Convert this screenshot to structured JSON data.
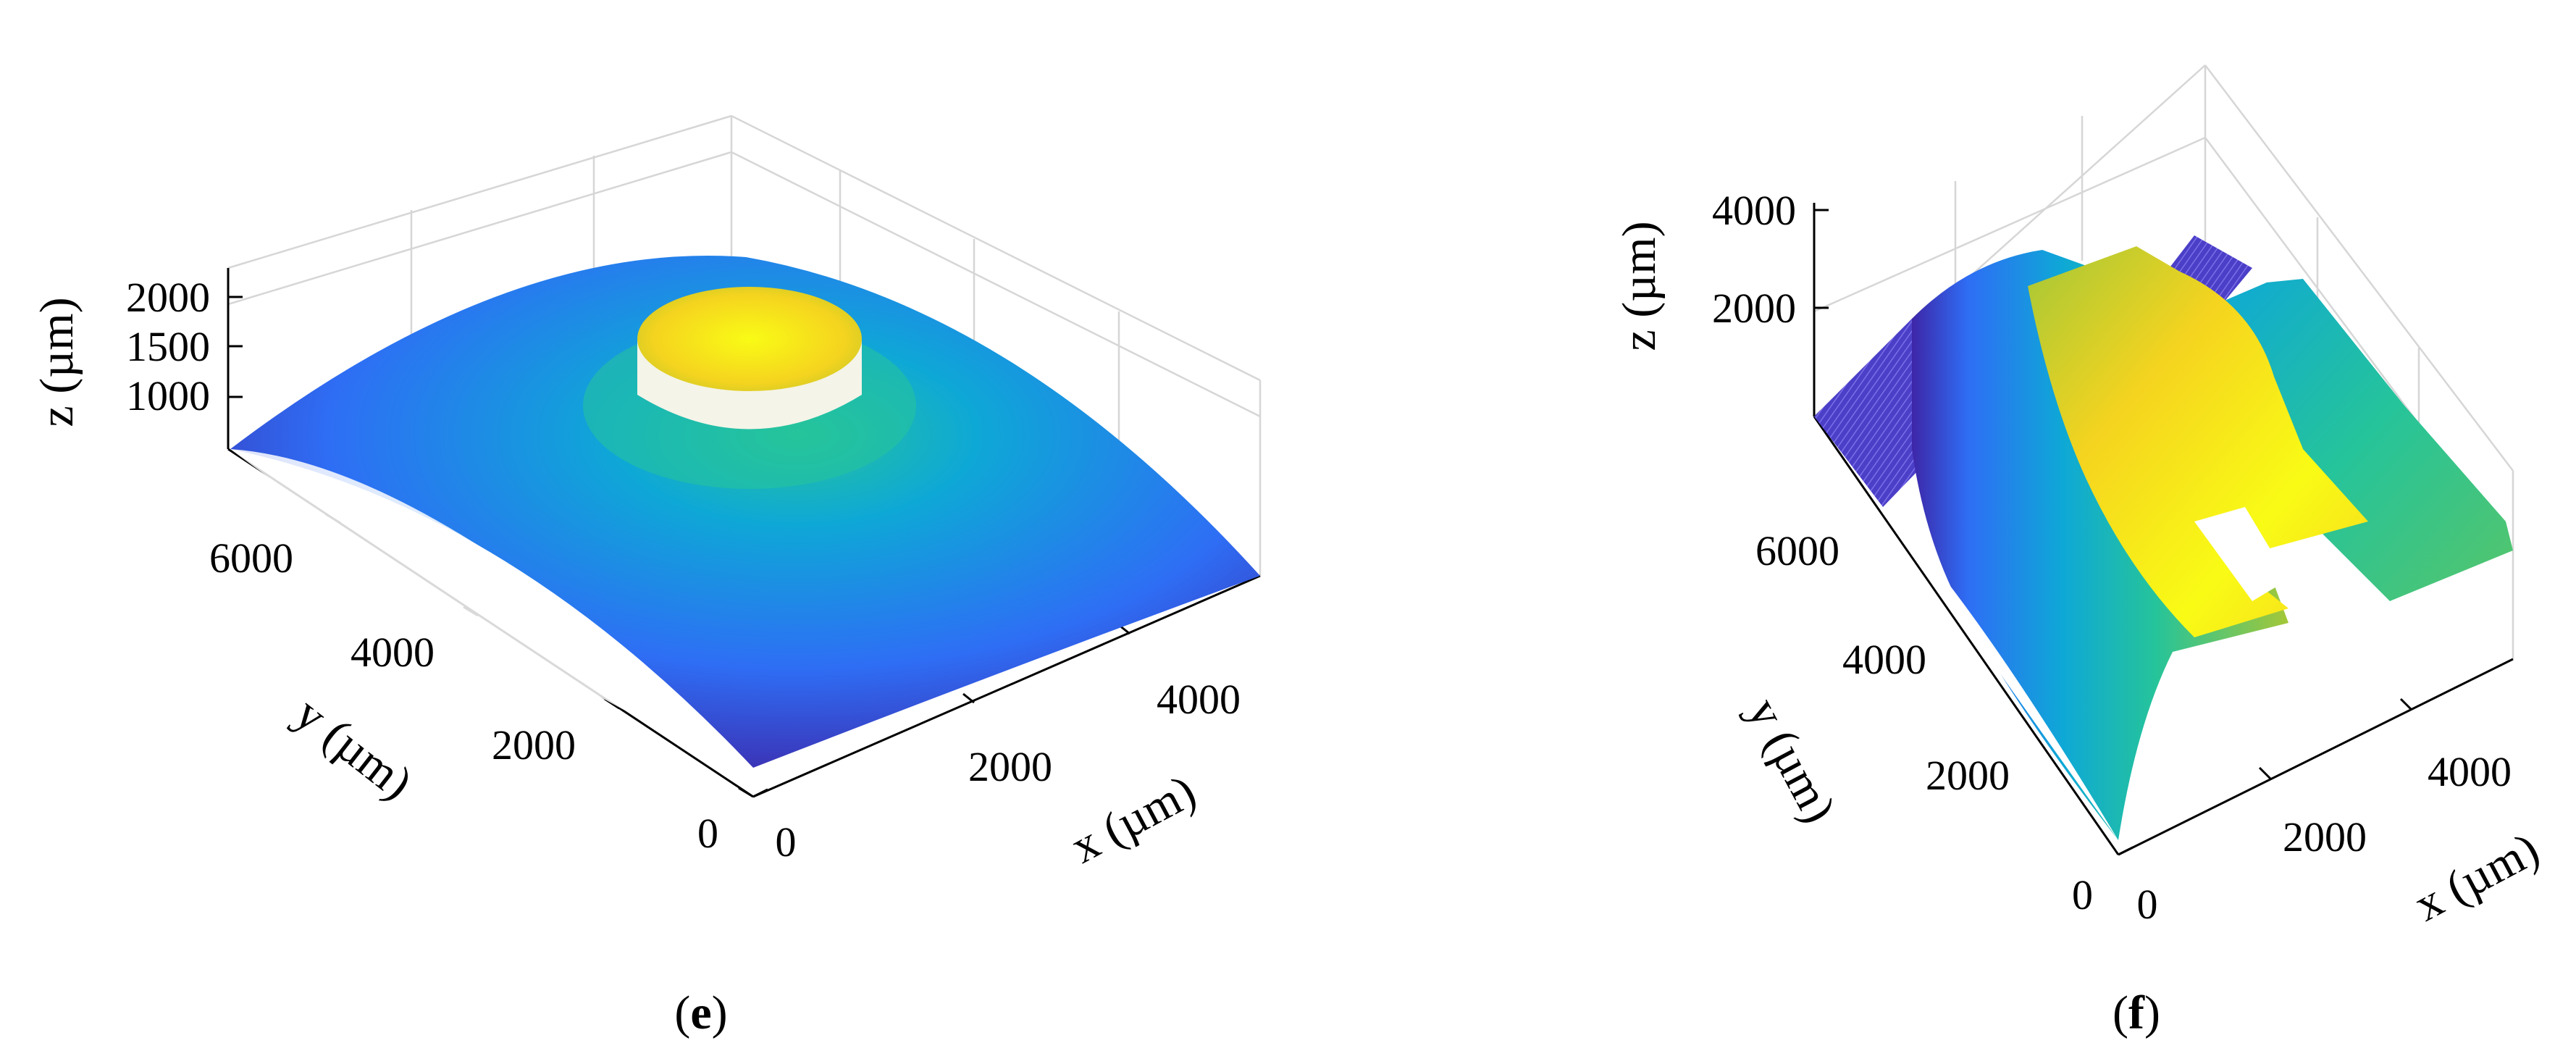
{
  "chart_data": [
    {
      "type": "surface",
      "panel_label": "e",
      "xlabel": "x (µm)",
      "ylabel": "y (µm)",
      "zlabel": "z (µm)",
      "xlim": [
        0,
        5000
      ],
      "ylim": [
        0,
        7000
      ],
      "zlim": [
        500,
        2300
      ],
      "x_ticks": [
        "0",
        "2000",
        "4000"
      ],
      "y_ticks": [
        "0",
        "2000",
        "4000",
        "6000"
      ],
      "z_ticks": [
        "1000",
        "1500",
        "2000"
      ],
      "colormap": [
        "#3e26a8",
        "#2e6ef5",
        "#0ea8d6",
        "#26c49a",
        "#a4c737",
        "#f5d41f",
        "#f9fb15"
      ],
      "surface": "dome with raised cylindrical pad at center"
    },
    {
      "type": "surface",
      "panel_label": "f",
      "xlabel": "x (µm)",
      "ylabel": "y (µm)",
      "zlabel": "z (µm)",
      "xlim": [
        0,
        5000
      ],
      "ylim": [
        0,
        7000
      ],
      "zlim": [
        0,
        4500
      ],
      "x_ticks": [
        "0",
        "2000",
        "4000"
      ],
      "y_ticks": [
        "0",
        "2000",
        "4000",
        "6000"
      ],
      "z_ticks": [
        "2000",
        "4000"
      ],
      "colormap": [
        "#3e26a8",
        "#2e6ef5",
        "#0ea8d6",
        "#26c49a",
        "#a4c737",
        "#f5d41f",
        "#f9fb15"
      ],
      "surface": "ridge with two stepped blocks"
    }
  ]
}
